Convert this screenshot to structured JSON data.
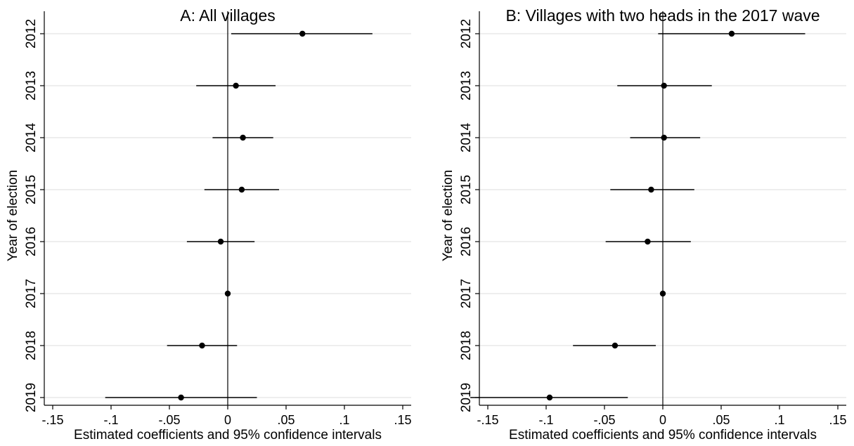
{
  "chart_data": [
    {
      "type": "scatter",
      "title": "A: All villages",
      "xlabel": "Estimated coefficients and 95% confidence intervals",
      "ylabel": "Year of election",
      "xlim": [
        -0.15,
        0.15
      ],
      "xticks": [
        -0.15,
        -0.1,
        -0.05,
        0,
        0.05,
        0.1,
        0.15
      ],
      "xtick_labels": [
        "-.15",
        "-.1",
        "-.05",
        "0",
        ".05",
        ".1",
        ".15"
      ],
      "categories": [
        "2012",
        "2013",
        "2014",
        "2015",
        "2016",
        "2017",
        "2018",
        "2019"
      ],
      "estimates": [
        0.064,
        0.007,
        0.013,
        0.012,
        -0.006,
        0.0,
        -0.022,
        -0.04
      ],
      "ci_low": [
        0.003,
        -0.027,
        -0.013,
        -0.02,
        -0.035,
        0.0,
        -0.052,
        -0.105
      ],
      "ci_high": [
        0.124,
        0.041,
        0.039,
        0.044,
        0.023,
        0.0,
        0.008,
        0.025
      ],
      "reference_line": 0,
      "grid": true
    },
    {
      "type": "scatter",
      "title": "B: Villages with two heads in the 2017 wave",
      "xlabel": "Estimated coefficients and 95% confidence intervals",
      "ylabel": "Year of election",
      "xlim": [
        -0.15,
        0.15
      ],
      "xticks": [
        -0.15,
        -0.1,
        -0.05,
        0,
        0.05,
        0.1,
        0.15
      ],
      "xtick_labels": [
        "-.15",
        "-.1",
        "-.05",
        "0",
        ".05",
        ".1",
        ".15"
      ],
      "categories": [
        "2012",
        "2013",
        "2014",
        "2015",
        "2016",
        "2017",
        "2018",
        "2019"
      ],
      "estimates": [
        0.059,
        0.001,
        0.001,
        -0.01,
        -0.013,
        0.0,
        -0.041,
        -0.097
      ],
      "ci_low": [
        -0.004,
        -0.039,
        -0.028,
        -0.045,
        -0.049,
        0.0,
        -0.077,
        -0.165
      ],
      "ci_high": [
        0.122,
        0.042,
        0.032,
        0.027,
        0.024,
        0.0,
        -0.006,
        -0.03
      ],
      "reference_line": 0,
      "grid": true
    }
  ]
}
